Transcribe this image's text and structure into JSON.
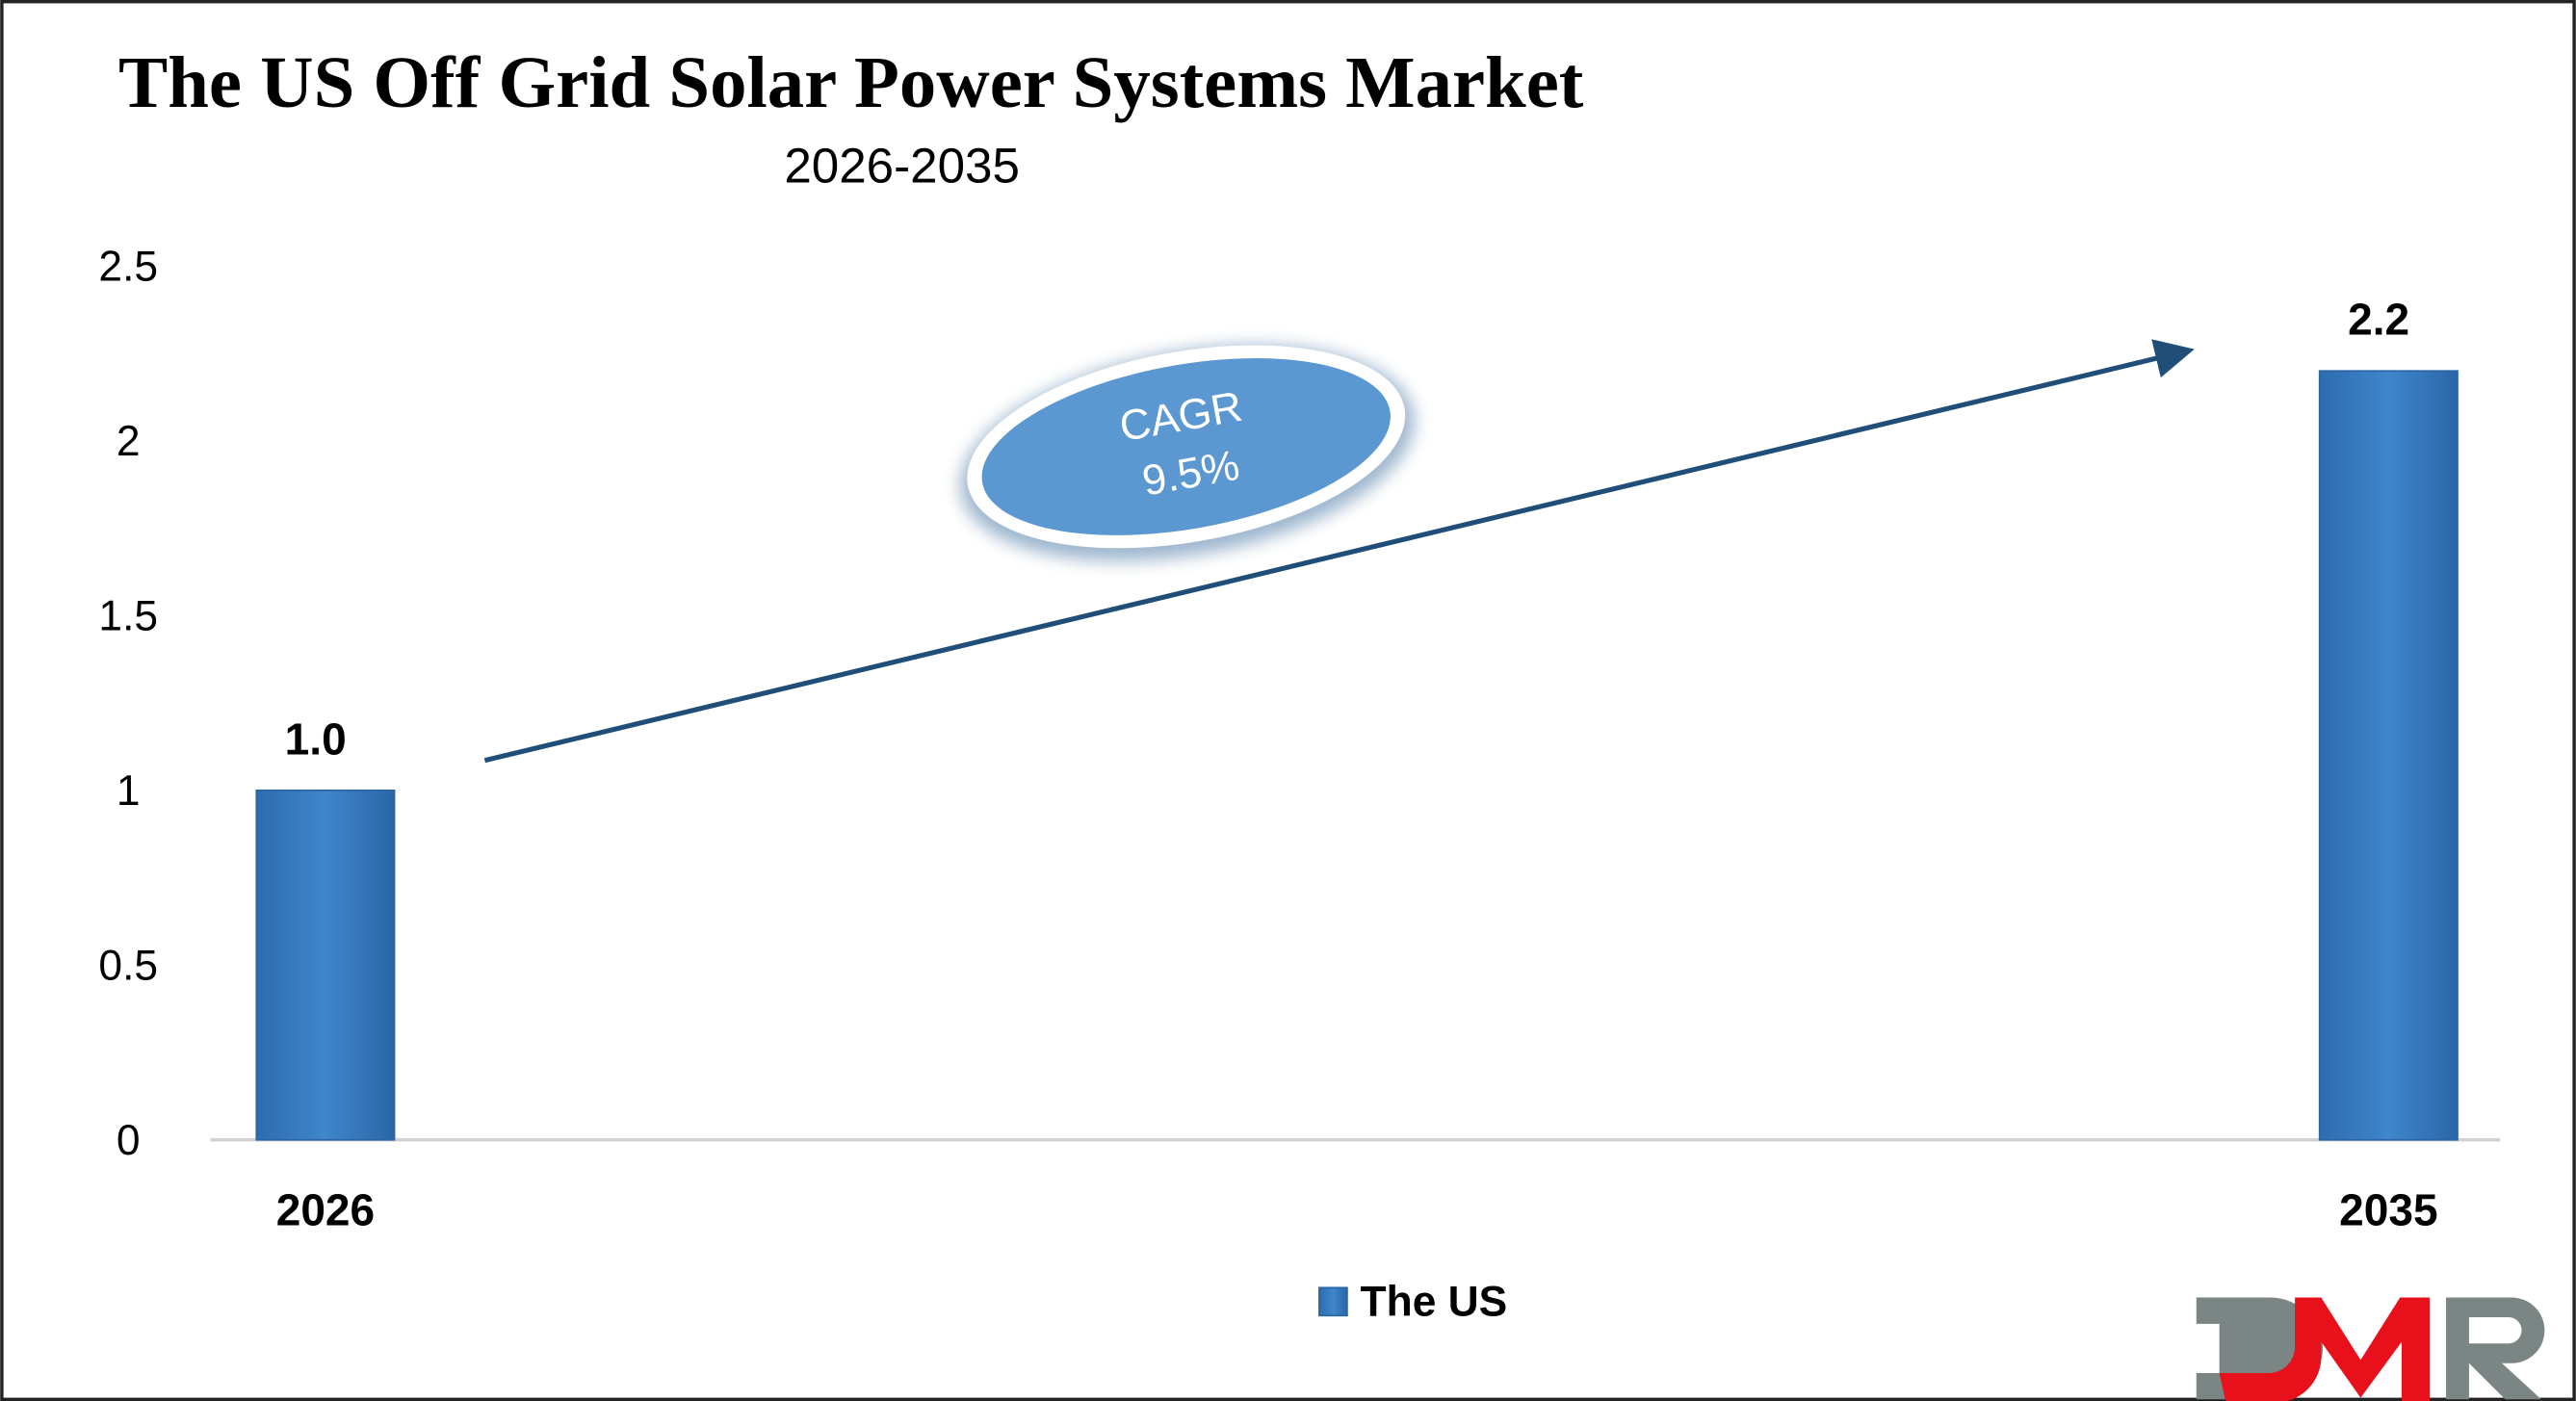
{
  "title": "The US Off Grid Solar Power Systems Market",
  "subtitle": "2026-2035",
  "chart_data": {
    "type": "bar",
    "categories": [
      "2026",
      "2035"
    ],
    "series": [
      {
        "name": "The US",
        "values": [
          1.0,
          2.2
        ],
        "color": "#3b7fc4"
      }
    ],
    "data_labels": [
      "1.0",
      "2.2"
    ],
    "ylim": [
      0,
      2.5
    ],
    "yticks": [
      "0",
      "0.5",
      "1",
      "1.5",
      "2",
      "2.5"
    ],
    "grid": false,
    "legend": "bottom-center",
    "annotation": {
      "label": "CAGR",
      "value": "9.5%"
    }
  },
  "logo": {
    "text": "DMR",
    "colors": {
      "gray": "#7a8584",
      "red": "#e8101a"
    }
  }
}
